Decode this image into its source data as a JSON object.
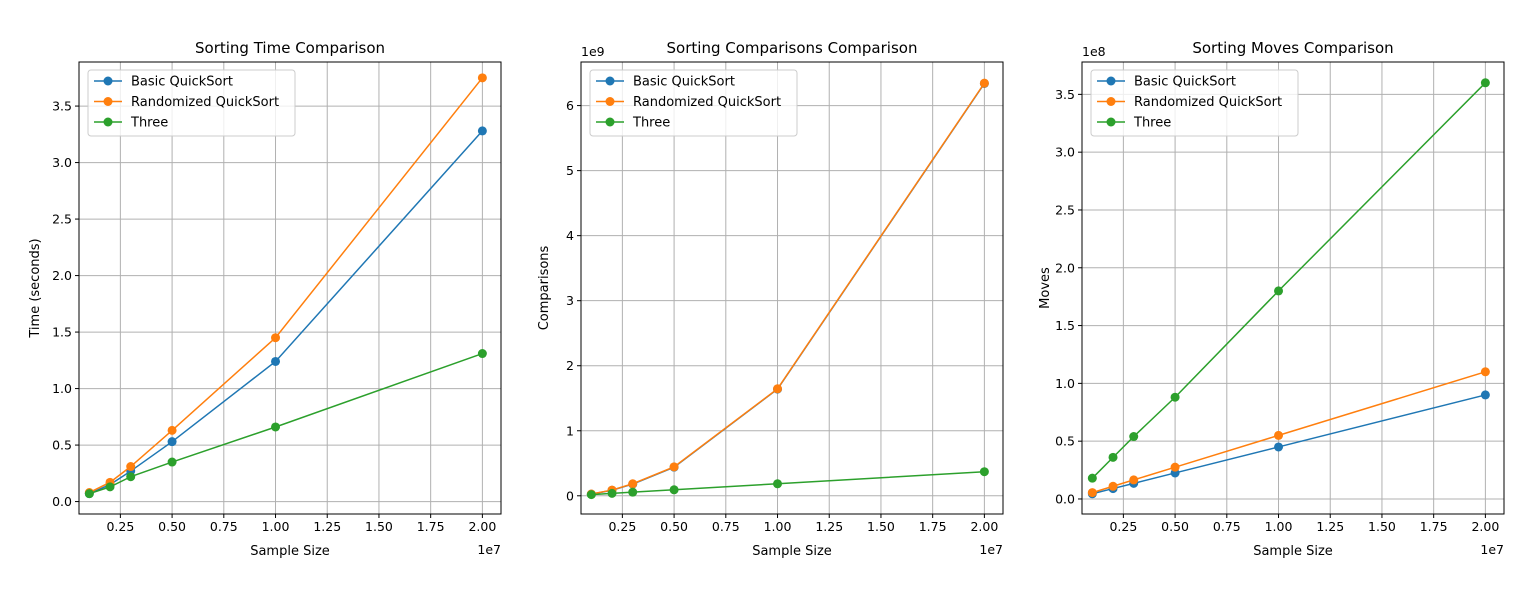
{
  "chart_data": [
    {
      "type": "line",
      "title": "Sorting Time Comparison",
      "xlabel": "Sample Size",
      "ylabel": "Time (seconds)",
      "x_offset_label": "1e7",
      "y_offset_label": "",
      "x_scale": 10000000,
      "y_scale": 1,
      "x": [
        1000000,
        2000000,
        3000000,
        5000000,
        10000000,
        20000000
      ],
      "xlim": [
        0.05,
        2.09
      ],
      "ylim": [
        -0.11,
        3.89
      ],
      "xticks": [
        0.25,
        0.5,
        0.75,
        1.0,
        1.25,
        1.5,
        1.75,
        2.0
      ],
      "xtick_labels": [
        "0.25",
        "0.50",
        "0.75",
        "1.00",
        "1.25",
        "1.50",
        "1.75",
        "2.00"
      ],
      "yticks": [
        0.0,
        0.5,
        1.0,
        1.5,
        2.0,
        2.5,
        3.0,
        3.5
      ],
      "ytick_labels": [
        "0.0",
        "0.5",
        "1.0",
        "1.5",
        "2.0",
        "2.5",
        "3.0",
        "3.5"
      ],
      "grid": true,
      "legend": "top-left",
      "series": [
        {
          "name": "Basic QuickSort",
          "color": "#1f77b4",
          "values": [
            0.07,
            0.15,
            0.27,
            0.53,
            1.24,
            3.28
          ]
        },
        {
          "name": "Randomized QuickSort",
          "color": "#ff7f0e",
          "values": [
            0.08,
            0.17,
            0.31,
            0.63,
            1.45,
            3.75
          ]
        },
        {
          "name": "Three",
          "color": "#2ca02c",
          "values": [
            0.07,
            0.13,
            0.22,
            0.35,
            0.66,
            1.31
          ]
        }
      ]
    },
    {
      "type": "line",
      "title": "Sorting Comparisons Comparison",
      "xlabel": "Sample Size",
      "ylabel": "Comparisons",
      "x_offset_label": "1e7",
      "y_offset_label": "1e9",
      "x_scale": 10000000,
      "y_scale": 1000000000,
      "x": [
        1000000,
        2000000,
        3000000,
        5000000,
        10000000,
        20000000
      ],
      "xlim": [
        0.05,
        2.09
      ],
      "ylim": [
        -0.28,
        6.67
      ],
      "xticks": [
        0.25,
        0.5,
        0.75,
        1.0,
        1.25,
        1.5,
        1.75,
        2.0
      ],
      "xtick_labels": [
        "0.25",
        "0.50",
        "0.75",
        "1.00",
        "1.25",
        "1.50",
        "1.75",
        "2.00"
      ],
      "yticks": [
        0,
        1,
        2,
        3,
        4,
        5,
        6
      ],
      "ytick_labels": [
        "0",
        "1",
        "2",
        "3",
        "4",
        "5",
        "6"
      ],
      "grid": true,
      "legend": "top-left",
      "series": [
        {
          "name": "Basic QuickSort",
          "color": "#1f77b4",
          "values": [
            25000000,
            85000000,
            180000000,
            440000000,
            1640000000,
            6340000000
          ]
        },
        {
          "name": "Randomized QuickSort",
          "color": "#ff7f0e",
          "values": [
            27000000,
            88000000,
            185000000,
            445000000,
            1645000000,
            6345000000
          ]
        },
        {
          "name": "Three",
          "color": "#2ca02c",
          "values": [
            18000000,
            37000000,
            56000000,
            92000000,
            185000000,
            370000000
          ]
        }
      ]
    },
    {
      "type": "line",
      "title": "Sorting Moves Comparison",
      "xlabel": "Sample Size",
      "ylabel": "Moves",
      "x_offset_label": "1e7",
      "y_offset_label": "1e8",
      "x_scale": 10000000,
      "y_scale": 100000000,
      "x": [
        1000000,
        2000000,
        3000000,
        5000000,
        10000000,
        20000000
      ],
      "xlim": [
        0.05,
        2.09
      ],
      "ylim": [
        -0.13,
        3.78
      ],
      "xticks": [
        0.25,
        0.5,
        0.75,
        1.0,
        1.25,
        1.5,
        1.75,
        2.0
      ],
      "xtick_labels": [
        "0.25",
        "0.50",
        "0.75",
        "1.00",
        "1.25",
        "1.50",
        "1.75",
        "2.00"
      ],
      "yticks": [
        0.0,
        0.5,
        1.0,
        1.5,
        2.0,
        2.5,
        3.0,
        3.5
      ],
      "ytick_labels": [
        "0.0",
        "0.5",
        "1.0",
        "1.5",
        "2.0",
        "2.5",
        "3.0",
        "3.5"
      ],
      "grid": true,
      "legend": "top-left",
      "series": [
        {
          "name": "Basic QuickSort",
          "color": "#1f77b4",
          "values": [
            4500000,
            9000000,
            13500000,
            22500000,
            45000000,
            90000000
          ]
        },
        {
          "name": "Randomized QuickSort",
          "color": "#ff7f0e",
          "values": [
            5500000,
            11000000,
            16500000,
            27500000,
            55000000,
            110000000
          ]
        },
        {
          "name": "Three",
          "color": "#2ca02c",
          "values": [
            18000000,
            36000000,
            54000000,
            88000000,
            180000000,
            360000000
          ]
        }
      ]
    }
  ]
}
